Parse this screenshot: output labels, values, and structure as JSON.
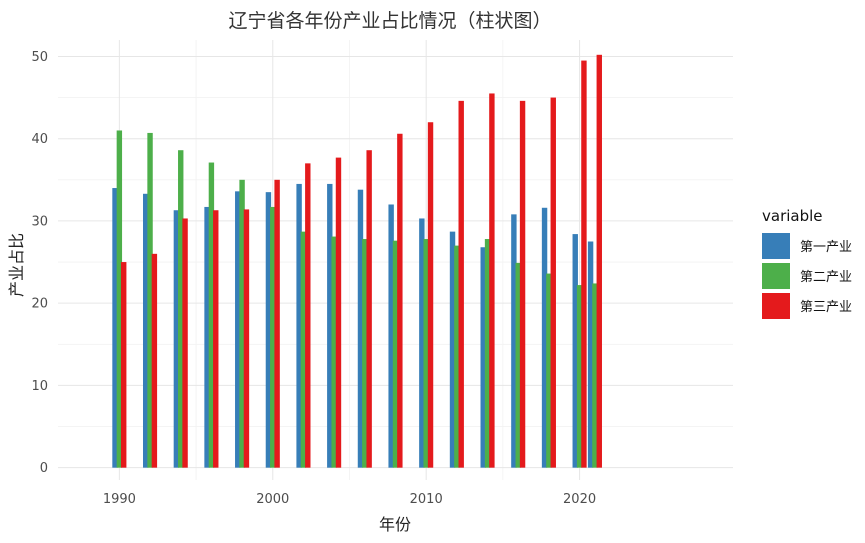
{
  "chart_data": {
    "type": "bar",
    "title": "辽宁省各年份产业占比情况（柱状图）",
    "xlabel": "年份",
    "ylabel": "产业占比",
    "x": [
      1990,
      1992,
      1994,
      1996,
      1998,
      2000,
      2002,
      2004,
      2006,
      2008,
      2010,
      2012,
      2014,
      2016,
      2018,
      2020,
      2021
    ],
    "x_ticks": [
      1990,
      2000,
      2010,
      2020
    ],
    "xlim": [
      1986,
      2030
    ],
    "ylim": [
      -1.5,
      52
    ],
    "y_ticks": [
      0,
      10,
      20,
      30,
      40,
      50
    ],
    "grid": true,
    "legend": {
      "title": "variable",
      "position": "right"
    },
    "series": [
      {
        "name": "第一产业",
        "color": "#377EB8",
        "values": [
          34.0,
          33.3,
          31.3,
          31.7,
          33.6,
          33.5,
          34.5,
          34.5,
          33.8,
          32.0,
          30.3,
          28.7,
          26.8,
          30.8,
          31.6,
          28.4,
          27.5
        ]
      },
      {
        "name": "第二产业",
        "color": "#4DAF4A",
        "values": [
          41.0,
          40.7,
          38.6,
          37.1,
          35.0,
          31.7,
          28.7,
          28.1,
          27.8,
          27.6,
          27.8,
          27.0,
          27.8,
          24.9,
          23.6,
          22.2,
          22.4
        ]
      },
      {
        "name": "第三产业",
        "color": "#E41A1C",
        "values": [
          25.0,
          26.0,
          30.3,
          31.3,
          31.4,
          35.0,
          37.0,
          37.7,
          38.6,
          40.6,
          42.0,
          44.6,
          45.5,
          44.6,
          45.0,
          49.5,
          50.2
        ]
      }
    ]
  }
}
